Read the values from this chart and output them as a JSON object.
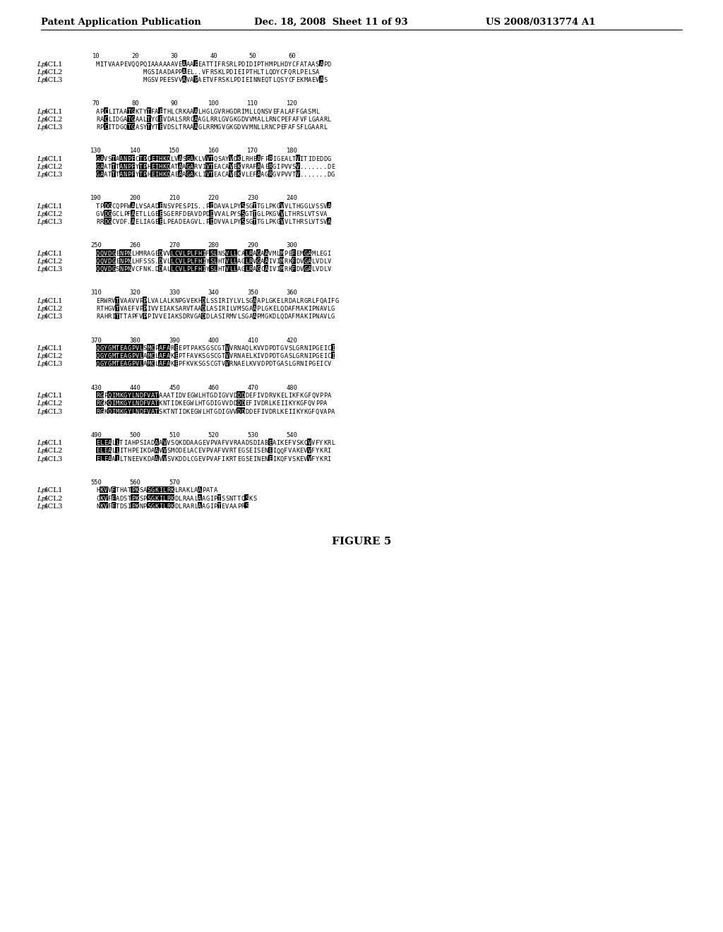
{
  "header_left": "Patent Application Publication",
  "header_mid": "Dec. 18, 2008  Sheet 11 of 93",
  "header_right": "US 2008/0313774 A1",
  "figure_label": "FIGURE 5",
  "block_data": [
    {
      "ruler": [
        10,
        20,
        30,
        40,
        50,
        60
      ],
      "rows": [
        [
          "Lp",
          "4CL1",
          "MITVAAPEVQQPQIAAAAAAVEAAAPEATTIFRSRLPDIDIPTHMPLHDYCFATAASAPD"
        ],
        [
          "Lp",
          "4CL2",
          "            MGSIAADAPPAEL..VFRSKLPDIEIPTHLTLQDYCFQRLPELSA   "
        ],
        [
          "Lp",
          "4CL3",
          "            MGSVPEESVVAVAPAETVFRSKLPDIEINNEQTLQSYCFEKMAEVAS  "
        ]
      ]
    },
    {
      "ruler": [
        70,
        80,
        90,
        100,
        110,
        120
      ],
      "rows": [
        [
          "Lp",
          "4CL1",
          "APCLITAATGKTYTFAETHLCRKAAALHGLGVRHGDRIMLLQNSVEFALAFFGASML  "
        ],
        [
          "Lp",
          "4CL2",
          "RACLIDGATGAALTYGEVDALSRRCAAGLRRLGVGKGDVVMALLRNCPEFAFVFLGAARL"
        ],
        [
          "Lp",
          "4CL3",
          "RPCITDGQTGASYTYTEVDSLTRAAAGLRRMGVGKGDVVMNLLRNCPEFAFSFLGAARL"
        ]
      ]
    },
    {
      "ruler": [
        130,
        140,
        150,
        160,
        170,
        180
      ],
      "rows": [
        [
          "Lp",
          "4CL1",
          "GAVSTAANPFCTPQEIHKQLVASGAKLVVTQSAYVDKLRHEAFPRIGEALTVITIDEDDG"
        ],
        [
          "Lp",
          "4CL2",
          "GAATTTANPFYTPHEIHKQATAAGARVIVTEACAVEKVRAFAAERGIPVVSV.......DE"
        ],
        [
          "Lp",
          "4CL3",
          "GAATTTANPFYTPHEIHKQAEAAGAKLIVTEACAVEKVLEFAAGRGVPVVTV.......DG"
        ]
      ]
    },
    {
      "ruler": [
        190,
        200,
        210,
        220,
        230,
        240
      ],
      "rows": [
        [
          "Lp",
          "4CL1",
          "TPDGCQPFWALVSAADENSVPESPIS..PDDAVALPYSSGTTGLPKGVVLTHGGLVSSVA"
        ],
        [
          "Lp",
          "4CL2",
          "GVDGGCLPFAETLLGEESGERFDEAVDPDDVVALPYSSGTTGLPKGVVLTHRSLVTSVA "
        ],
        [
          "Lp",
          "4CL3",
          "RRDGCVDF.AELIAGEELPEADEAGVL.PDDVVALPYSSGTTGLPKGVVLTHRSLVTSVA"
        ]
      ]
    },
    {
      "ruler": [
        250,
        260,
        270,
        280,
        290,
        300
      ],
      "rows": [
        [
          "Lp",
          "4CL1",
          "QQVDGENPNLHMRAGEDVVLCVLPLFHIFSLNSVLLCALRAGAAVMLMPEFEMGAMLEGI"
        ],
        [
          "Lp",
          "4CL2",
          "QQVDGENPNLHFSSS.DVLLCVLPLFHIYSLHTVLLAGLRVGAAIVIMRKFDVGALVDLV"
        ],
        [
          "Lp",
          "4CL3",
          "QQVDGSNPNVCFNK.DDALLCVLPLFHIYSLHTVLLAGLRAGCAIVIMRKFDVGALVDLV"
        ]
      ]
    },
    {
      "ruler": [
        310,
        320,
        330,
        340,
        350,
        360
      ],
      "rows": [
        [
          "Lp",
          "4CL1",
          "ERWRVTVAAVVPPLVALALKNPGVEKHDLSSIRIYLVLSGAAPLGKELRDALRGRLFQAIFG"
        ],
        [
          "Lp",
          "4CL2",
          "RTHGVTVAEFVPPIVVEIAKSARVTAADLASIRILVMSGAAPLGKELQDAFMAKIPNAVLG "
        ],
        [
          "Lp",
          "4CL3",
          "RAHRITTTAPFVPPIVVEIAKSDRVGADDLASIRMVLSGAAPMGKDLQDAFMAKIPNAVLG "
        ]
      ]
    },
    {
      "ruler": [
        370,
        380,
        390,
        400,
        410,
        420
      ],
      "rows": [
        [
          "Lp",
          "4CL1",
          "QGYGMTEAGPVLSMCPAFAREEPTPAKSGSCGTVVRNAQLKVVDPDTGVSLGRNIPGEICI"
        ],
        [
          "Lp",
          "4CL2",
          "QGYGMTEAGPVLAMCLAFAKEPTFAVKSGSCGTVVRNAELKIVDPDTGASLGRNIPGEICI"
        ],
        [
          "Lp",
          "4CL3",
          "QGYGMTEAGPVLAMCLAFAKEPFKVKSGSCGTVVRNAELKVVDPDTGASLGRNIPGEICV "
        ]
      ]
    },
    {
      "ruler": [
        430,
        440,
        450,
        460,
        470,
        480
      ],
      "rows": [
        [
          "Lp",
          "4CL1",
          "RGPQIMKGYLNDFVATAAATIDVEGWLHTGDIGVVDDDDEFIVDRVKELIKFKGFQVPPA "
        ],
        [
          "Lp",
          "4CL2",
          "RGKQIMKGYLNDFVATKNTIDKEGWLHTGDIGVVDDDDEFIVDRLKEIIKYKGFQVPPA  "
        ],
        [
          "Lp",
          "4CL3",
          "RGKQIMKGYLNDFVATSKTNTIDKEGWLHTGDIGVVDDDDEFIVDRLKEIIKYKGFQVAPA"
        ]
      ]
    },
    {
      "ruler": [
        490,
        500,
        510,
        520,
        530,
        540
      ],
      "rows": [
        [
          "Lp",
          "4CL1",
          "ELEALLTIAHPSIADAAVVSQKDDAAGEVPVAFVVRAADSDIABEAIKEFVSKQVVFYKRL"
        ],
        [
          "Lp",
          "4CL2",
          "ELEALLITHPEIKDAAVVSMODELACEVPVAFVVRTEGSEISENEIQQFVAKEVVFYKRI "
        ],
        [
          "Lp",
          "4CL3",
          "ELEAALLTNEEVKDAAVVSVKDDLCGEVPVAFIKRTEGSEINENEIKQFVSKEVVFYKRI  "
        ]
      ]
    },
    {
      "ruler": [
        550,
        560,
        570
      ],
      "rows": [
        [
          "Lp",
          "4CL1",
          "HKVVFTHATPKSASGKILRKLRAKLAAPATA           "
        ],
        [
          "Lp",
          "4CL2",
          "CKVFFADSTPKSPSGKILRKDLRAALAAGIPTSSNTTQSKS"
        ],
        [
          "Lp",
          "4CL3",
          "NKVFFTDSIPKNPSGKILRKDLRARLAAGIPTEVAAPRS  "
        ]
      ]
    }
  ]
}
